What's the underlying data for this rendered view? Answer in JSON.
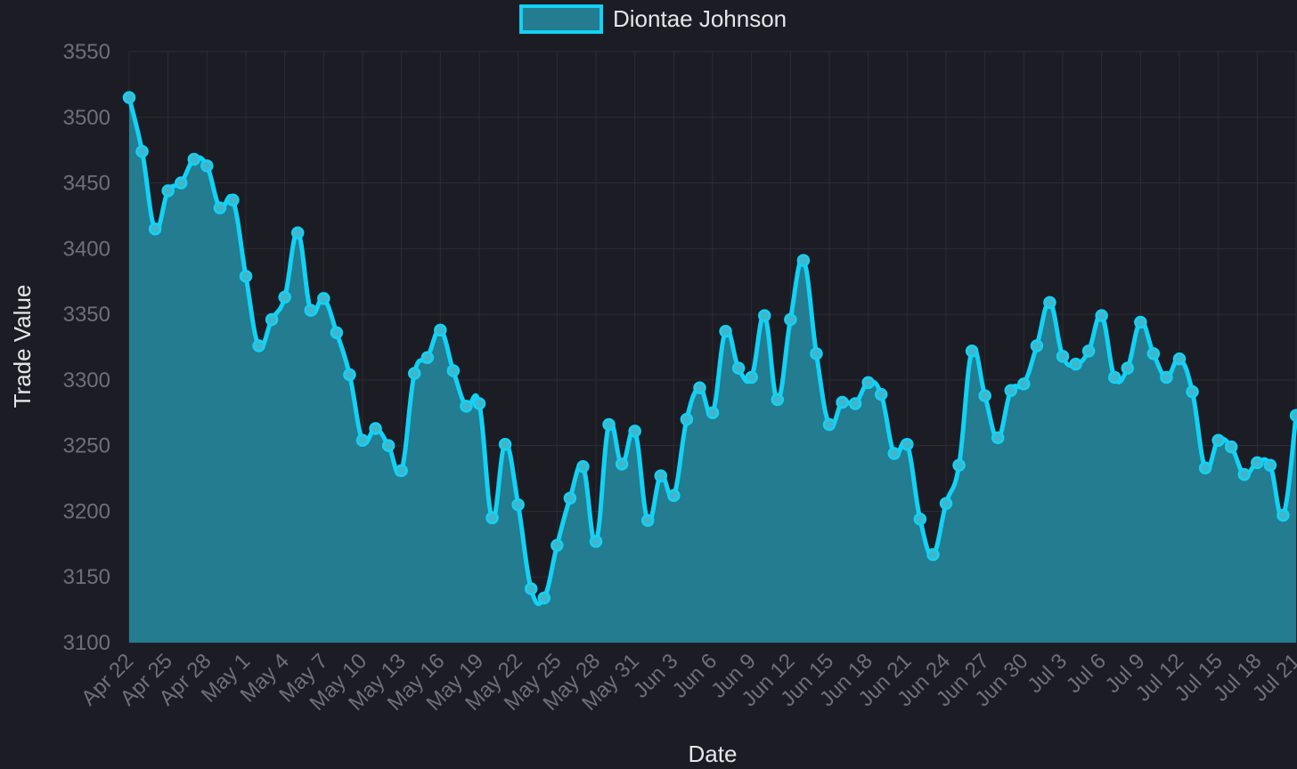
{
  "chart_data": {
    "type": "area",
    "colors": {
      "line": "#12d2f5",
      "fill": "#237c90",
      "background": "#1c1c24"
    },
    "legend": {
      "position": "top",
      "label": "Diontae Johnson"
    },
    "xlabel": "Date",
    "ylabel": "Trade Value",
    "ylim": [
      3100,
      3550
    ],
    "yticks": [
      3100,
      3150,
      3200,
      3250,
      3300,
      3350,
      3400,
      3450,
      3500,
      3550
    ],
    "xtick_labels": [
      "Apr 22",
      "Apr 25",
      "Apr 28",
      "May 1",
      "May 4",
      "May 7",
      "May 10",
      "May 13",
      "May 16",
      "May 19",
      "May 22",
      "May 25",
      "May 28",
      "May 31",
      "Jun 3",
      "Jun 6",
      "Jun 9",
      "Jun 12",
      "Jun 15",
      "Jun 18",
      "Jun 21",
      "Jun 24",
      "Jun 27",
      "Jun 30",
      "Jul 3",
      "Jul 6",
      "Jul 9",
      "Jul 12",
      "Jul 15",
      "Jul 18",
      "Jul 21"
    ],
    "grid": true,
    "series": [
      {
        "name": "Diontae Johnson",
        "x": [
          "Apr 22",
          "Apr 23",
          "Apr 24",
          "Apr 25",
          "Apr 26",
          "Apr 27",
          "Apr 28",
          "Apr 29",
          "Apr 30",
          "May 1",
          "May 2",
          "May 3",
          "May 4",
          "May 5",
          "May 6",
          "May 7",
          "May 8",
          "May 9",
          "May 10",
          "May 11",
          "May 12",
          "May 13",
          "May 14",
          "May 15",
          "May 16",
          "May 17",
          "May 18",
          "May 19",
          "May 20",
          "May 21",
          "May 22",
          "May 23",
          "May 24",
          "May 25",
          "May 26",
          "May 27",
          "May 28",
          "May 29",
          "May 30",
          "May 31",
          "Jun 1",
          "Jun 2",
          "Jun 3",
          "Jun 4",
          "Jun 5",
          "Jun 6",
          "Jun 7",
          "Jun 8",
          "Jun 9",
          "Jun 10",
          "Jun 11",
          "Jun 12",
          "Jun 13",
          "Jun 14",
          "Jun 15",
          "Jun 16",
          "Jun 17",
          "Jun 18",
          "Jun 19",
          "Jun 20",
          "Jun 21",
          "Jun 22",
          "Jun 23",
          "Jun 24",
          "Jun 25",
          "Jun 26",
          "Jun 27",
          "Jun 28",
          "Jun 29",
          "Jun 30",
          "Jul 1",
          "Jul 2",
          "Jul 3",
          "Jul 4",
          "Jul 5",
          "Jul 6",
          "Jul 7",
          "Jul 8",
          "Jul 9",
          "Jul 10",
          "Jul 11",
          "Jul 12",
          "Jul 13",
          "Jul 14",
          "Jul 15",
          "Jul 16",
          "Jul 17",
          "Jul 18",
          "Jul 19",
          "Jul 20",
          "Jul 21"
        ],
        "values": [
          3515,
          3474,
          3415,
          3444,
          3450,
          3468,
          3463,
          3431,
          3437,
          3379,
          3326,
          3346,
          3363,
          3412,
          3353,
          3362,
          3336,
          3304,
          3254,
          3263,
          3250,
          3231,
          3305,
          3317,
          3338,
          3307,
          3280,
          3282,
          3195,
          3251,
          3205,
          3141,
          3134,
          3174,
          3210,
          3234,
          3177,
          3266,
          3236,
          3261,
          3193,
          3227,
          3212,
          3270,
          3294,
          3275,
          3337,
          3309,
          3302,
          3349,
          3285,
          3346,
          3391,
          3320,
          3266,
          3283,
          3282,
          3298,
          3289,
          3244,
          3251,
          3194,
          3167,
          3206,
          3235,
          3322,
          3288,
          3256,
          3292,
          3297,
          3326,
          3359,
          3318,
          3312,
          3322,
          3349,
          3302,
          3309,
          3344,
          3320,
          3302,
          3316,
          3291,
          3233,
          3254,
          3249,
          3228,
          3237,
          3235,
          3197,
          3273
        ]
      }
    ]
  }
}
